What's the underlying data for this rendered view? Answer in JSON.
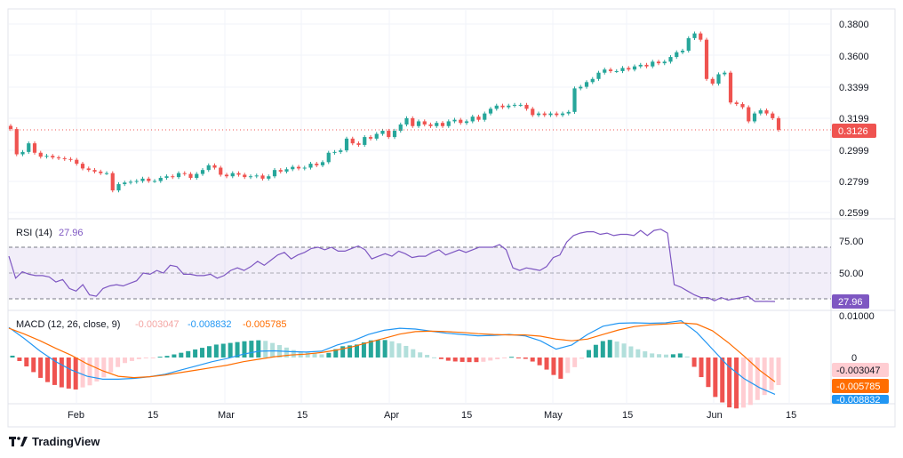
{
  "brand": {
    "name": "TradingView"
  },
  "colors": {
    "up": "#26a69a",
    "down": "#ef5350",
    "rsi": "#7e57c2",
    "macd": "#2196f3",
    "signal": "#ff6d00",
    "hist_up": "#26a69a",
    "hist_up_light": "#b2dfdb",
    "hist_down": "#ef5350",
    "hist_down_light": "#ffcdd2",
    "grid": "#f0f3fa",
    "text": "#131722"
  },
  "price": {
    "ticks": [
      "0.3800",
      "0.3600",
      "0.3399",
      "0.3199",
      "0.2999",
      "0.2799",
      "0.2599"
    ],
    "last_label": "0.3126",
    "last_value": 0.3126
  },
  "rsi": {
    "label": "RSI (14)",
    "value_label": "27.96",
    "ticks": [
      "75.00",
      "50.00"
    ],
    "badge": "27.96"
  },
  "macd": {
    "label": "MACD (12, 26, close, 9)",
    "hist_label": "-0.003047",
    "macd_label": "-0.008832",
    "signal_label": "-0.005785",
    "ticks": [
      "0.01000",
      "0"
    ],
    "badges": [
      "-0.003047",
      "-0.005785",
      "-0.008832"
    ]
  },
  "x_axis": {
    "labels": [
      "Feb",
      "15",
      "Mar",
      "15",
      "Apr",
      "15",
      "May",
      "15",
      "Jun",
      "15"
    ]
  },
  "chart_data": [
    {
      "type": "candlestick",
      "title": "",
      "ylim": [
        0.2599,
        0.38
      ],
      "closes": [
        0.3131,
        0.297,
        0.2985,
        0.304,
        0.298,
        0.2955,
        0.296,
        0.295,
        0.2945,
        0.294,
        0.2935,
        0.291,
        0.288,
        0.287,
        0.286,
        0.285,
        0.285,
        0.274,
        0.278,
        0.279,
        0.2795,
        0.28,
        0.2815,
        0.28,
        0.28,
        0.282,
        0.283,
        0.2825,
        0.285,
        0.2845,
        0.282,
        0.2845,
        0.287,
        0.29,
        0.2885,
        0.284,
        0.283,
        0.285,
        0.284,
        0.2825,
        0.283,
        0.2835,
        0.2815,
        0.283,
        0.287,
        0.286,
        0.2875,
        0.289,
        0.288,
        0.2885,
        0.291,
        0.29,
        0.292,
        0.298,
        0.2985,
        0.2995,
        0.307,
        0.304,
        0.303,
        0.308,
        0.307,
        0.31,
        0.312,
        0.308,
        0.312,
        0.316,
        0.32,
        0.315,
        0.318,
        0.316,
        0.315,
        0.317,
        0.315,
        0.318,
        0.319,
        0.317,
        0.318,
        0.321,
        0.319,
        0.323,
        0.326,
        0.328,
        0.327,
        0.328,
        0.3285,
        0.3285,
        0.326,
        0.322,
        0.323,
        0.322,
        0.323,
        0.322,
        0.323,
        0.324,
        0.339,
        0.34,
        0.343,
        0.345,
        0.349,
        0.351,
        0.35,
        0.35,
        0.352,
        0.351,
        0.353,
        0.354,
        0.353,
        0.356,
        0.355,
        0.356,
        0.359,
        0.362,
        0.363,
        0.371,
        0.374,
        0.37,
        0.345,
        0.342,
        0.348,
        0.349,
        0.33,
        0.329,
        0.327,
        0.318,
        0.323,
        0.325,
        0.323,
        0.32,
        0.3126
      ],
      "last": 0.3126
    },
    {
      "type": "line",
      "title": "RSI (14)",
      "ylim": [
        20,
        100
      ],
      "levels": [
        70,
        50,
        30
      ],
      "values": [
        63,
        46,
        51,
        49,
        48,
        48,
        47,
        43,
        45,
        38,
        36,
        41,
        33,
        32,
        38,
        40,
        41,
        40,
        42,
        44,
        50,
        49,
        52,
        50,
        56,
        55,
        49,
        49,
        48,
        48,
        49,
        46,
        48,
        52,
        54,
        52,
        55,
        59,
        56,
        60,
        64,
        66,
        61,
        64,
        66,
        69,
        70,
        68,
        70,
        67,
        67,
        69,
        71,
        68,
        61,
        63,
        65,
        63,
        67,
        65,
        62,
        63,
        63,
        66,
        68,
        64,
        66,
        68,
        66,
        68,
        70,
        70,
        70,
        72,
        68,
        54,
        52,
        54,
        53,
        52,
        55,
        62,
        64,
        74,
        79,
        81,
        82,
        82,
        80,
        81,
        79,
        80,
        80,
        79,
        83,
        79,
        83,
        84,
        81,
        41,
        39,
        36,
        33,
        31,
        31,
        28.5,
        31,
        29,
        30,
        31,
        32,
        28,
        28,
        28,
        27.96
      ]
    },
    {
      "type": "line+bar",
      "title": "MACD (12, 26, close, 9)",
      "ylim": [
        -0.0115,
        0.0105
      ],
      "macd": [
        0.0072,
        0.0045,
        0.0015,
        -0.001,
        -0.003,
        -0.0045,
        -0.0052,
        -0.0052,
        -0.005,
        -0.0046,
        -0.004,
        -0.003,
        -0.002,
        -0.001,
        -0.0002,
        0.0008,
        0.0015,
        0.0016,
        0.0014,
        0.0013,
        0.0015,
        0.003,
        0.004,
        0.0055,
        0.0065,
        0.007,
        0.0068,
        0.0063,
        0.0058,
        0.0055,
        0.0052,
        0.0053,
        0.0055,
        0.0052,
        0.004,
        0.002,
        0.003,
        0.0055,
        0.0075,
        0.0082,
        0.0083,
        0.0082,
        0.0083,
        0.0088,
        0.006,
        0.002,
        -0.002,
        -0.005,
        -0.0072,
        -0.0088
      ],
      "signal": [
        0.007,
        0.0056,
        0.004,
        0.0022,
        0.0005,
        -0.0015,
        -0.0032,
        -0.0045,
        -0.0048,
        -0.0046,
        -0.0042,
        -0.0036,
        -0.003,
        -0.0024,
        -0.0018,
        -0.001,
        -0.0004,
        0.0002,
        0.0006,
        0.0008,
        0.0012,
        0.0018,
        0.0026,
        0.0036,
        0.0046,
        0.0056,
        0.0062,
        0.0063,
        0.0062,
        0.006,
        0.0057,
        0.0055,
        0.0054,
        0.0054,
        0.0051,
        0.0044,
        0.004,
        0.0044,
        0.0055,
        0.0066,
        0.0074,
        0.0078,
        0.008,
        0.0083,
        0.008,
        0.0064,
        0.0036,
        0.0004,
        -0.003,
        -0.0058
      ],
      "last": {
        "histogram": -0.003047,
        "macd": -0.008832,
        "signal": -0.005785
      }
    }
  ]
}
